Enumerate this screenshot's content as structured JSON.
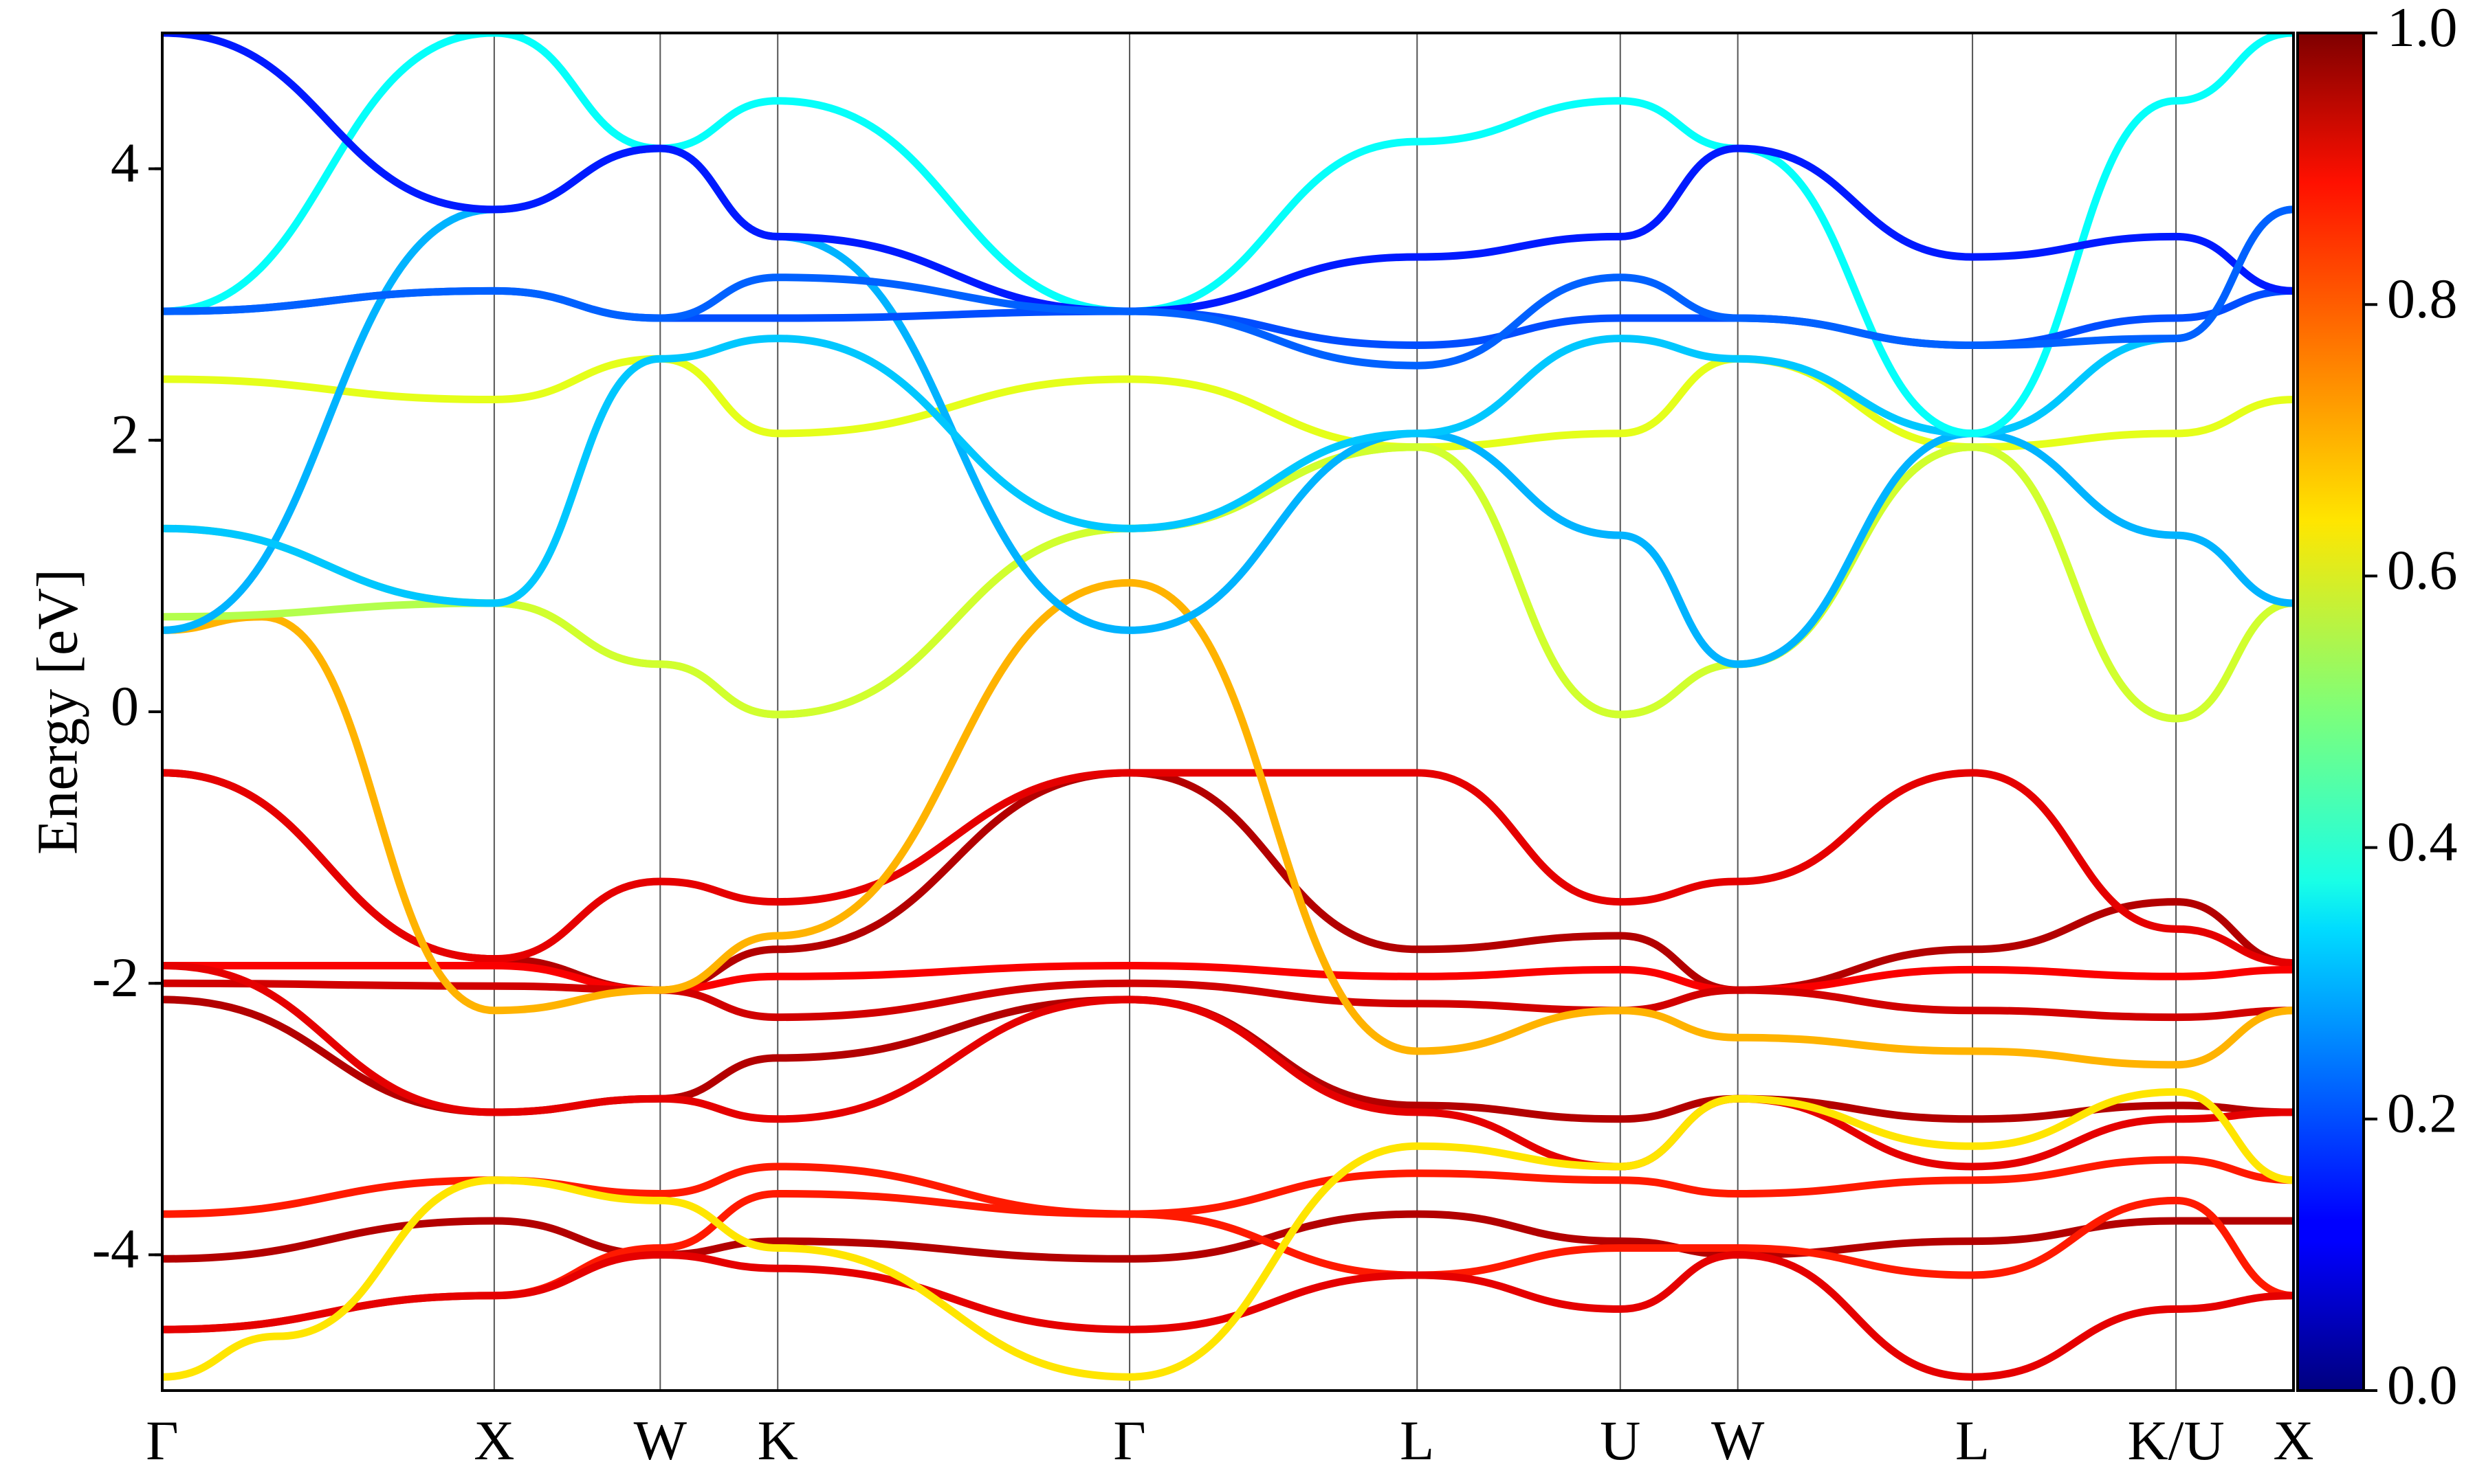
{
  "chart_data": {
    "type": "line",
    "ylabel": "Energy [eV]",
    "ylim": [
      -5,
      5
    ],
    "y_ticks": [
      -4,
      -2,
      0,
      2,
      4
    ],
    "y_tick_labels": [
      "-4",
      "-2",
      "0",
      "2",
      "4"
    ],
    "k_path_labels": [
      "Γ",
      "X",
      "W",
      "K",
      "Γ",
      "L",
      "U",
      "W",
      "L",
      "K/U",
      "X"
    ],
    "k_path_positions": [
      0,
      1.0,
      1.5,
      1.854,
      2.914,
      3.78,
      4.392,
      4.746,
      5.453,
      6.066,
      6.42
    ],
    "grid": false,
    "colorbar": {
      "colormap": "jet",
      "range": [
        0.0,
        1.0
      ],
      "ticks": [
        0.0,
        0.2,
        0.4,
        0.6,
        0.8,
        1.0
      ],
      "tick_labels": [
        "0.0",
        "0.2",
        "0.4",
        "0.6",
        "0.8",
        "1.0"
      ]
    },
    "series": [
      {
        "weight": 0.95,
        "x": [
          0,
          1.0,
          1.5,
          1.854,
          2.914,
          3.78,
          4.392,
          4.746,
          5.453,
          6.066,
          6.42
        ],
        "y": [
          -0.45,
          -1.82,
          -2.05,
          -1.75,
          -0.45,
          -1.75,
          -1.65,
          -2.05,
          -1.75,
          -1.4,
          -1.85
        ]
      },
      {
        "weight": 0.9,
        "x": [
          0,
          1.0,
          1.5,
          1.854,
          2.914,
          3.78,
          4.392,
          4.746,
          5.453,
          6.066,
          6.42
        ],
        "y": [
          -0.45,
          -1.82,
          -1.25,
          -1.4,
          -0.45,
          -0.45,
          -1.4,
          -1.25,
          -0.45,
          -1.6,
          -1.85
        ]
      },
      {
        "weight": 0.88,
        "x": [
          0,
          1.0,
          1.5,
          1.854,
          2.914,
          3.78,
          4.392,
          4.746,
          5.453,
          6.066,
          6.42
        ],
        "y": [
          -1.87,
          -1.87,
          -2.05,
          -1.95,
          -1.87,
          -1.95,
          -1.9,
          -2.05,
          -1.9,
          -1.95,
          -1.9
        ]
      },
      {
        "weight": 0.92,
        "x": [
          0,
          1.0,
          1.5,
          1.854,
          2.914,
          3.78,
          4.392,
          4.746,
          5.453,
          6.066,
          6.42
        ],
        "y": [
          -2.0,
          -2.02,
          -2.05,
          -2.25,
          -2.0,
          -2.15,
          -2.2,
          -2.05,
          -2.2,
          -2.25,
          -2.2
        ]
      },
      {
        "weight": 0.95,
        "x": [
          0,
          1.0,
          1.5,
          1.854,
          2.914,
          3.78,
          4.392,
          4.746,
          5.453,
          6.066,
          6.42
        ],
        "y": [
          -2.12,
          -2.95,
          -2.85,
          -2.55,
          -2.12,
          -2.9,
          -3.0,
          -2.85,
          -3.0,
          -2.9,
          -2.95
        ]
      },
      {
        "weight": 0.9,
        "x": [
          0,
          1.0,
          1.5,
          1.854,
          2.914,
          3.78,
          4.392,
          4.746,
          5.453,
          6.066,
          6.42
        ],
        "y": [
          -1.87,
          -2.95,
          -2.85,
          -3.0,
          -2.12,
          -2.95,
          -3.35,
          -2.85,
          -3.35,
          -3.0,
          -2.95
        ]
      },
      {
        "weight": 0.85,
        "x": [
          0,
          1.0,
          1.5,
          1.854,
          2.914,
          3.78,
          4.392,
          4.746,
          5.453,
          6.066,
          6.42
        ],
        "y": [
          -3.7,
          -3.45,
          -3.55,
          -3.35,
          -3.7,
          -3.4,
          -3.45,
          -3.55,
          -3.45,
          -3.3,
          -3.45
        ]
      },
      {
        "weight": 0.95,
        "x": [
          0,
          1.0,
          1.5,
          1.854,
          2.914,
          3.78,
          4.392,
          4.746,
          5.453,
          6.066,
          6.42
        ],
        "y": [
          -4.03,
          -3.75,
          -4.0,
          -3.9,
          -4.03,
          -3.7,
          -3.9,
          -4.0,
          -3.9,
          -3.75,
          -3.75
        ]
      },
      {
        "weight": 0.85,
        "x": [
          0,
          1.0,
          1.5,
          1.854,
          2.914,
          3.78,
          4.392,
          4.746,
          5.453,
          6.066,
          6.42
        ],
        "y": [
          -4.55,
          -4.3,
          -3.95,
          -3.55,
          -3.7,
          -4.15,
          -3.95,
          -3.95,
          -4.15,
          -3.6,
          -4.3
        ]
      },
      {
        "weight": 0.9,
        "x": [
          0,
          1.0,
          1.5,
          1.854,
          2.914,
          3.78,
          4.392,
          4.746,
          5.453,
          6.066,
          6.42
        ],
        "y": [
          -4.55,
          -4.3,
          -4.0,
          -4.1,
          -4.55,
          -4.15,
          -4.4,
          -4.0,
          -4.9,
          -4.4,
          -4.3
        ]
      },
      {
        "weight": 0.65,
        "x": [
          0,
          0.35,
          1.0,
          1.5,
          1.854,
          2.914,
          3.78,
          4.392,
          4.746,
          5.453,
          6.066,
          6.42
        ],
        "y": [
          -4.9,
          -4.6,
          -3.45,
          -3.6,
          -3.95,
          -4.9,
          -3.2,
          -3.35,
          -2.85,
          -3.2,
          -2.8,
          -3.45
        ]
      },
      {
        "weight": 0.7,
        "x": [
          0,
          0.3,
          1.0,
          1.5,
          1.854,
          2.914,
          3.78,
          4.392,
          4.746,
          5.453,
          6.066,
          6.42
        ],
        "y": [
          0.6,
          0.7,
          -2.2,
          -2.05,
          -1.65,
          0.95,
          -2.5,
          -2.2,
          -2.4,
          -2.5,
          -2.6,
          -2.2
        ]
      },
      {
        "weight": 0.6,
        "x": [
          0,
          1.0,
          1.5,
          1.854,
          2.914,
          3.78,
          4.392,
          4.746,
          5.453,
          6.066,
          6.42
        ],
        "y": [
          2.45,
          2.3,
          2.6,
          2.05,
          2.45,
          1.95,
          2.05,
          2.6,
          1.95,
          2.05,
          2.3
        ]
      },
      {
        "weight": 0.55,
        "x": [
          0,
          1.0,
          1.5,
          1.854,
          2.914,
          3.78,
          4.392,
          4.746,
          5.453,
          6.066,
          6.42
        ],
        "y": [
          0.7,
          0.8,
          0.35,
          -0.02,
          1.35,
          1.95,
          -0.02,
          0.35,
          1.95,
          -0.05,
          0.8
        ]
      },
      {
        "weight": 0.58,
        "x": [
          0,
          1.0,
          1.5,
          1.854,
          2.914,
          3.78,
          4.392,
          4.746,
          5.453,
          6.066,
          6.42
        ],
        "y": [
          1.35,
          0.8,
          0.35,
          -0.02,
          1.35,
          1.95,
          -0.02,
          0.35,
          1.95,
          -0.05,
          0.8
        ]
      },
      {
        "weight": 0.3,
        "x": [
          0,
          1.0,
          1.5,
          1.854,
          2.914,
          3.78,
          4.392,
          4.746,
          5.453,
          6.066,
          6.42
        ],
        "y": [
          0.6,
          3.7,
          4.15,
          3.5,
          0.6,
          2.05,
          1.3,
          0.35,
          2.05,
          1.3,
          0.8
        ]
      },
      {
        "weight": 0.32,
        "x": [
          0,
          1.0,
          1.5,
          1.854,
          2.914,
          3.78,
          4.392,
          4.746,
          5.453,
          6.066,
          6.42
        ],
        "y": [
          1.35,
          0.8,
          2.6,
          2.75,
          1.35,
          2.05,
          2.75,
          2.6,
          2.05,
          2.75,
          3.7
        ]
      },
      {
        "weight": 0.38,
        "x": [
          0,
          1.0,
          1.5,
          1.854,
          2.914,
          3.78,
          4.392,
          4.746,
          5.453,
          6.066,
          6.42
        ],
        "y": [
          2.95,
          5.0,
          4.15,
          4.5,
          2.95,
          4.2,
          4.5,
          4.15,
          2.05,
          4.5,
          5.0
        ]
      },
      {
        "weight": 0.2,
        "x": [
          0,
          1.0,
          1.5,
          1.854,
          2.914,
          3.78,
          4.392,
          4.746,
          5.453,
          6.066,
          6.42
        ],
        "y": [
          2.95,
          3.1,
          2.9,
          2.9,
          2.95,
          2.7,
          2.9,
          2.9,
          2.7,
          2.9,
          3.1
        ]
      },
      {
        "weight": 0.15,
        "x": [
          0,
          1.0,
          1.5,
          1.854,
          2.914,
          3.78,
          4.392,
          4.746,
          5.453,
          6.066,
          6.42
        ],
        "y": [
          5.0,
          3.7,
          4.15,
          3.5,
          2.95,
          3.35,
          3.5,
          4.15,
          3.35,
          3.5,
          3.1
        ]
      },
      {
        "weight": 0.22,
        "x": [
          0,
          1.0,
          1.5,
          1.854,
          2.914,
          3.78,
          4.392,
          4.746,
          5.453,
          6.066,
          6.42
        ],
        "y": [
          2.95,
          3.1,
          2.9,
          3.2,
          2.95,
          2.55,
          3.2,
          2.9,
          2.7,
          2.75,
          3.7
        ]
      }
    ]
  }
}
